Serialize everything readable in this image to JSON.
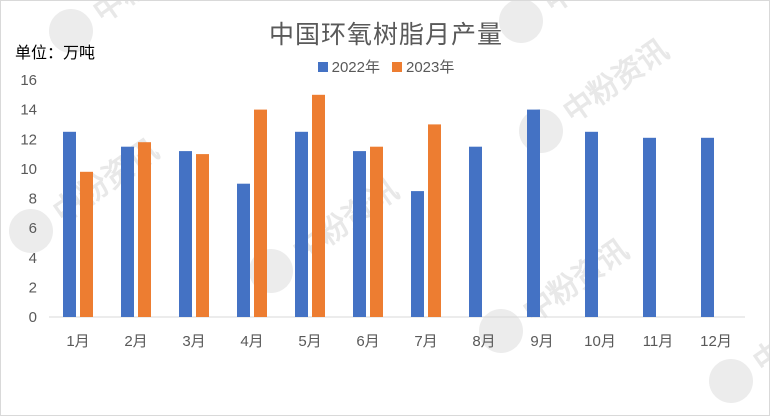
{
  "chart_data": {
    "type": "bar",
    "title": "中国环氧树脂月产量",
    "unit_label": "单位：万吨",
    "categories": [
      "1月",
      "2月",
      "3月",
      "4月",
      "5月",
      "6月",
      "7月",
      "8月",
      "9月",
      "10月",
      "11月",
      "12月"
    ],
    "series": [
      {
        "name": "2022年",
        "color": "#4472c4",
        "values": [
          12.5,
          11.5,
          11.2,
          9.0,
          12.5,
          11.2,
          8.5,
          11.5,
          14.0,
          12.5,
          12.1,
          12.1
        ]
      },
      {
        "name": "2023年",
        "color": "#ed7d31",
        "values": [
          9.8,
          11.8,
          11.0,
          14.0,
          15.0,
          11.5,
          13.0,
          null,
          null,
          null,
          null,
          null
        ]
      }
    ],
    "ylim": [
      0,
      16
    ],
    "yticks": [
      0,
      2,
      4,
      6,
      8,
      10,
      12,
      14,
      16
    ],
    "grid": false,
    "legend_position": "top"
  },
  "watermark": "中粉资讯"
}
